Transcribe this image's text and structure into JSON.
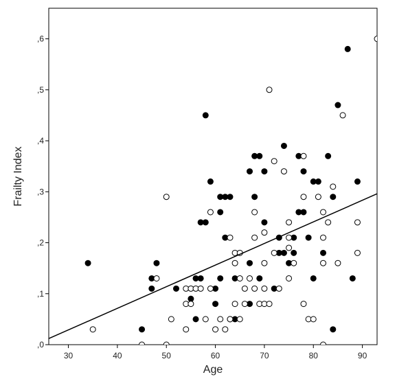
{
  "chart_data": {
    "type": "scatter",
    "title": "",
    "xlabel": "Age",
    "ylabel": "Frailty Index",
    "xlim": [
      26,
      93
    ],
    "ylim": [
      0,
      0.66
    ],
    "grid": false,
    "xticks": [
      30,
      40,
      50,
      60,
      70,
      80,
      90
    ],
    "xtick_labels": [
      "30",
      "40",
      "50",
      "60",
      "70",
      "80",
      "90"
    ],
    "yticks": [
      0,
      0.1,
      0.2,
      0.3,
      0.4,
      0.5,
      0.6
    ],
    "ytick_labels": [
      ",0",
      ",1",
      ",2",
      ",3",
      ",4",
      ",5",
      ",6"
    ],
    "series": [
      {
        "marker": "filled",
        "color": "#000000",
        "points": [
          [
            34,
            0.16
          ],
          [
            45,
            0.03
          ],
          [
            47,
            0.13
          ],
          [
            47,
            0.11
          ],
          [
            48,
            0.16
          ],
          [
            52,
            0.11
          ],
          [
            55,
            0.09
          ],
          [
            56,
            0.13
          ],
          [
            56,
            0.05
          ],
          [
            57,
            0.24
          ],
          [
            57,
            0.13
          ],
          [
            58,
            0.45
          ],
          [
            58,
            0.24
          ],
          [
            59,
            0.32
          ],
          [
            60,
            0.11
          ],
          [
            60,
            0.08
          ],
          [
            61,
            0.29
          ],
          [
            61,
            0.26
          ],
          [
            61,
            0.13
          ],
          [
            62,
            0.29
          ],
          [
            62,
            0.21
          ],
          [
            63,
            0.29
          ],
          [
            63,
            0.05
          ],
          [
            64,
            0.13
          ],
          [
            64,
            0.05
          ],
          [
            67,
            0.34
          ],
          [
            67,
            0.16
          ],
          [
            67,
            0.08
          ],
          [
            68,
            0.37
          ],
          [
            68,
            0.29
          ],
          [
            69,
            0.37
          ],
          [
            69,
            0.13
          ],
          [
            70,
            0.34
          ],
          [
            70,
            0.24
          ],
          [
            72,
            0.11
          ],
          [
            73,
            0.21
          ],
          [
            73,
            0.18
          ],
          [
            74,
            0.39
          ],
          [
            74,
            0.18
          ],
          [
            75,
            0.16
          ],
          [
            76,
            0.21
          ],
          [
            76,
            0.18
          ],
          [
            77,
            0.37
          ],
          [
            77,
            0.26
          ],
          [
            78,
            0.34
          ],
          [
            78,
            0.26
          ],
          [
            79,
            0.21
          ],
          [
            80,
            0.32
          ],
          [
            80,
            0.13
          ],
          [
            81,
            0.32
          ],
          [
            82,
            0.18
          ],
          [
            83,
            0.37
          ],
          [
            84,
            0.29
          ],
          [
            84,
            0.03
          ],
          [
            85,
            0.47
          ],
          [
            87,
            0.58
          ],
          [
            88,
            0.13
          ],
          [
            89,
            0.32
          ]
        ]
      },
      {
        "marker": "open",
        "color": "#000000",
        "points": [
          [
            35,
            0.03
          ],
          [
            45,
            0.0
          ],
          [
            48,
            0.13
          ],
          [
            50,
            0.29
          ],
          [
            50,
            0.0
          ],
          [
            51,
            0.05
          ],
          [
            54,
            0.11
          ],
          [
            54,
            0.08
          ],
          [
            54,
            0.03
          ],
          [
            55,
            0.11
          ],
          [
            55,
            0.08
          ],
          [
            56,
            0.11
          ],
          [
            57,
            0.11
          ],
          [
            58,
            0.05
          ],
          [
            59,
            0.26
          ],
          [
            59,
            0.11
          ],
          [
            60,
            0.03
          ],
          [
            61,
            0.05
          ],
          [
            62,
            0.03
          ],
          [
            63,
            0.21
          ],
          [
            63,
            0.05
          ],
          [
            64,
            0.08
          ],
          [
            64,
            0.18
          ],
          [
            64,
            0.16
          ],
          [
            65,
            0.18
          ],
          [
            65,
            0.13
          ],
          [
            65,
            0.05
          ],
          [
            66,
            0.08
          ],
          [
            66,
            0.11
          ],
          [
            67,
            0.13
          ],
          [
            68,
            0.26
          ],
          [
            68,
            0.21
          ],
          [
            68,
            0.11
          ],
          [
            69,
            0.08
          ],
          [
            70,
            0.22
          ],
          [
            70,
            0.16
          ],
          [
            70,
            0.11
          ],
          [
            70,
            0.08
          ],
          [
            71,
            0.5
          ],
          [
            71,
            0.08
          ],
          [
            72,
            0.36
          ],
          [
            72,
            0.18
          ],
          [
            73,
            0.11
          ],
          [
            74,
            0.34
          ],
          [
            75,
            0.24
          ],
          [
            75,
            0.21
          ],
          [
            75,
            0.19
          ],
          [
            75,
            0.13
          ],
          [
            76,
            0.16
          ],
          [
            78,
            0.37
          ],
          [
            78,
            0.29
          ],
          [
            78,
            0.08
          ],
          [
            79,
            0.05
          ],
          [
            80,
            0.05
          ],
          [
            81,
            0.29
          ],
          [
            82,
            0.26
          ],
          [
            82,
            0.21
          ],
          [
            82,
            0.16
          ],
          [
            82,
            0.0
          ],
          [
            83,
            0.24
          ],
          [
            84,
            0.31
          ],
          [
            85,
            0.16
          ],
          [
            86,
            0.45
          ],
          [
            89,
            0.24
          ],
          [
            89,
            0.18
          ],
          [
            93,
            0.6
          ]
        ]
      }
    ],
    "fit_line": {
      "type": "linear",
      "x": [
        26,
        93
      ],
      "y": [
        0.012,
        0.296
      ]
    }
  }
}
